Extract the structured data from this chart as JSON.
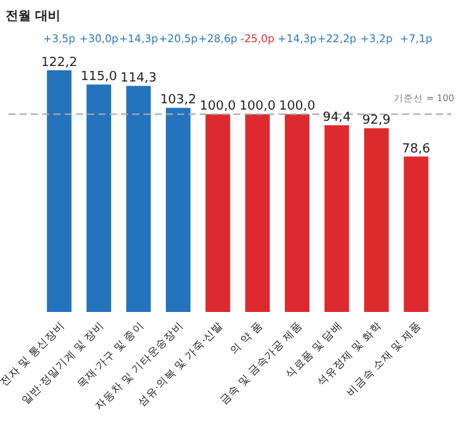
{
  "chart_data": {
    "type": "bar",
    "title": "전월 대비",
    "categories": [
      "전자 및 통신장비",
      "일반·정밀기계 및 장비",
      "목재·가구 및 종이",
      "자동차 및 기타운송장비",
      "섬유·의복 및 가죽·신발",
      "의 약 품",
      "금속 및 금속가공 제품",
      "식료품 및 담배",
      "석유정제 및 화학",
      "비금속 소재 및 제품"
    ],
    "values": [
      122.2,
      115.0,
      114.3,
      103.2,
      100.0,
      100.0,
      100.0,
      94.4,
      92.9,
      78.6
    ],
    "colors": [
      "#2473bd",
      "#2473bd",
      "#2473bd",
      "#2473bd",
      "#dc2a2e",
      "#dc2a2e",
      "#dc2a2e",
      "#dc2a2e",
      "#dc2a2e",
      "#dc2a2e"
    ],
    "value_labels": [
      "122,2",
      "115,0",
      "114,3",
      "103,2",
      "100,0",
      "100,0",
      "100,0",
      "94,4",
      "92,9",
      "78,6"
    ],
    "ref_lines": [
      {
        "axis": "y",
        "value": 100,
        "label": "기준선 = 100",
        "color": "#aaaaaa",
        "line_style": "dashed"
      }
    ],
    "annotations": [
      "+3,5p",
      "+30,0p",
      "+14,3p",
      "+20,5p",
      "+28,6p",
      "-25,0p",
      "+14,3p",
      "+22,2p",
      "+3,2p",
      "+7,1p"
    ]
  }
}
